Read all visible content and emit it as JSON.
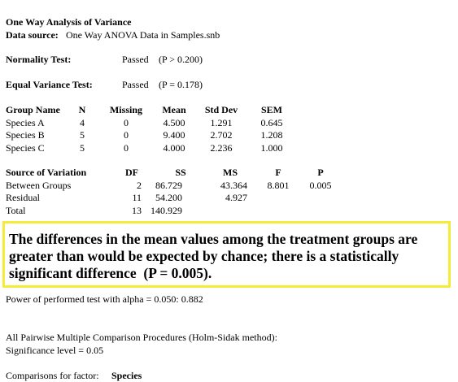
{
  "header": {
    "title": "One Way Analysis of Variance",
    "data_source_label": "Data source:",
    "data_source": "One Way ANOVA Data in Samples.snb"
  },
  "normality": {
    "label": "Normality Test:",
    "result": "Passed",
    "detail": "(P > 0.200)"
  },
  "equal_variance": {
    "label": "Equal Variance Test:",
    "result": "Passed",
    "detail": "(P = 0.178)"
  },
  "group_table": {
    "columns": [
      "Group Name",
      "N",
      "Missing",
      "Mean",
      "Std Dev",
      "SEM"
    ],
    "rows": [
      [
        "Species A",
        "4",
        "0",
        "4.500",
        "1.291",
        "0.645"
      ],
      [
        "Species B",
        "5",
        "0",
        "9.400",
        "2.702",
        "1.208"
      ],
      [
        "Species C",
        "5",
        "0",
        "4.000",
        "2.236",
        "1.000"
      ]
    ]
  },
  "anova_table": {
    "columns": [
      "Source of Variation",
      "DF",
      "SS",
      "MS",
      "F",
      "P"
    ],
    "rows": [
      [
        "Between Groups",
        "2",
        "86.729",
        "43.364",
        "8.801",
        "0.005"
      ],
      [
        "Residual",
        "11",
        "54.200",
        "4.927",
        "",
        ""
      ],
      [
        "Total",
        "13",
        "140.929",
        "",
        "",
        ""
      ]
    ]
  },
  "conclusion": [
    "The differences in the mean values among the treatment groups are",
    "greater than would be expected by chance; there is a statistically",
    "significant difference  (P = 0.005)."
  ],
  "power": "Power of performed test with alpha = 0.050: 0.882",
  "pairwise": "All Pairwise Multiple Comparison Procedures (Holm-Sidak method):",
  "significance": "Significance level = 0.05",
  "comparisons": {
    "label": "Comparisons for factor:",
    "factor": "Species"
  }
}
